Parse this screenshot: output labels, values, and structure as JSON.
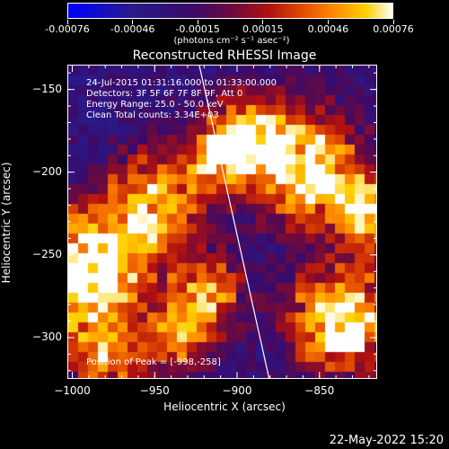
{
  "colorbar": {
    "tick_labels": [
      "-0.00076",
      "-0.00046",
      "-0.00015",
      "0.00015",
      "0.00046",
      "0.00076"
    ],
    "units": "(photons cm⁻² s⁻¹ asec⁻²)"
  },
  "title": "Reconstructed RHESSI Image",
  "info": {
    "time_range": "24-Jul-2015 01:31:16.000 to 01:33:00.000",
    "detectors": "Detectors: 3F 5F 6F 7F 8F 9F, Att 0",
    "energy": "Energy Range: 25.0 - 50.0 keV",
    "clean": "Clean    Total counts: 3.34E+03",
    "peak": "Position of Peak = [-998,-258]"
  },
  "axes": {
    "xlabel": "Heliocentric X (arcsec)",
    "ylabel": "Heliocentric Y (arcsec)",
    "xticks": [
      -1000,
      -950,
      -900,
      -850
    ],
    "yticks": [
      -150,
      -200,
      -250,
      -300
    ],
    "xlim": [
      -1003,
      -815
    ],
    "ylim": [
      -325,
      -135
    ]
  },
  "datestamp": "22-May-2022 15:20"
}
